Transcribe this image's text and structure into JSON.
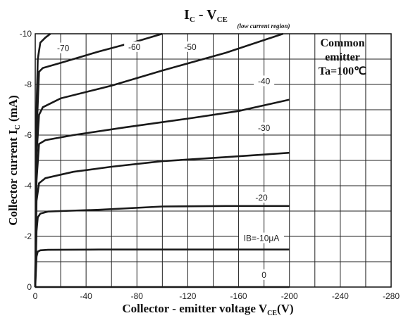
{
  "chart_data": {
    "type": "line",
    "title": {
      "main": "I",
      "main_sub": "C",
      "sep": " - V",
      "sep_sub": "CE",
      "note": "(low current region)"
    },
    "xlabel": {
      "main": "Collector - emitter voltage V",
      "sub": "CE",
      "unit": "(V)"
    },
    "ylabel": {
      "main": "Collector current  I",
      "sub": "C",
      "unit": " (mA)"
    },
    "xlim": [
      0,
      -280
    ],
    "ylim": [
      0,
      -10
    ],
    "grid": true,
    "x_ticks": [
      "0",
      "-40",
      "-80",
      "-120",
      "-160",
      "-200",
      "-240",
      "-280"
    ],
    "x_tick_values": [
      0,
      -40,
      -80,
      -120,
      -160,
      -200,
      -240,
      -280
    ],
    "y_ticks": [
      "0",
      "-2",
      "-4",
      "-6",
      "-8",
      "-10"
    ],
    "y_tick_values": [
      0,
      -2,
      -4,
      -6,
      -8,
      -10
    ],
    "note_lines": [
      "Common",
      "emitter",
      "Ta=100℃"
    ],
    "series": [
      {
        "name": "0",
        "label": "0",
        "points": [
          [
            0,
            0
          ],
          [
            -200,
            0
          ]
        ]
      },
      {
        "name": "IB=-10μA",
        "label": "IB=-10μA",
        "points": [
          [
            0,
            0
          ],
          [
            -1,
            -1.2
          ],
          [
            -2,
            -1.4
          ],
          [
            -4,
            -1.45
          ],
          [
            -10,
            -1.47
          ],
          [
            -50,
            -1.48
          ],
          [
            -100,
            -1.48
          ],
          [
            -200,
            -1.48
          ]
        ]
      },
      {
        "name": "-20",
        "label": "-20",
        "points": [
          [
            0,
            0
          ],
          [
            -1,
            -2.2
          ],
          [
            -2,
            -2.75
          ],
          [
            -4,
            -2.9
          ],
          [
            -10,
            -2.98
          ],
          [
            -20,
            -3.0
          ],
          [
            -50,
            -3.05
          ],
          [
            -100,
            -3.18
          ],
          [
            -150,
            -3.2
          ],
          [
            -200,
            -3.2
          ]
        ]
      },
      {
        "name": "-30",
        "label": "-30",
        "points": [
          [
            0,
            0
          ],
          [
            -1,
            -3.4
          ],
          [
            -3,
            -4.1
          ],
          [
            -8,
            -4.3
          ],
          [
            -30,
            -4.55
          ],
          [
            -60,
            -4.75
          ],
          [
            -100,
            -4.97
          ],
          [
            -150,
            -5.13
          ],
          [
            -200,
            -5.3
          ]
        ]
      },
      {
        "name": "-40",
        "label": "-40",
        "points": [
          [
            0,
            0
          ],
          [
            -1,
            -4.2
          ],
          [
            -3,
            -5.65
          ],
          [
            -8,
            -5.8
          ],
          [
            -30,
            -6.0
          ],
          [
            -70,
            -6.3
          ],
          [
            -120,
            -6.65
          ],
          [
            -160,
            -6.95
          ],
          [
            -200,
            -7.4
          ]
        ]
      },
      {
        "name": "-50",
        "label": "-50",
        "points": [
          [
            0,
            0
          ],
          [
            -1,
            -5.2
          ],
          [
            -3,
            -6.8
          ],
          [
            -6,
            -7.1
          ],
          [
            -20,
            -7.45
          ],
          [
            -60,
            -7.95
          ],
          [
            -100,
            -8.55
          ],
          [
            -150,
            -9.25
          ],
          [
            -195,
            -10
          ]
        ]
      },
      {
        "name": "-60",
        "label": "-60",
        "points": [
          [
            0,
            0
          ],
          [
            -1,
            -6.0
          ],
          [
            -3,
            -8.5
          ],
          [
            -6,
            -8.65
          ],
          [
            -20,
            -8.85
          ],
          [
            -50,
            -9.3
          ],
          [
            -80,
            -9.7
          ],
          [
            -100,
            -10
          ]
        ]
      },
      {
        "name": "-70",
        "label": "-70",
        "points": [
          [
            0,
            0
          ],
          [
            -1,
            -7.0
          ],
          [
            -2,
            -9.0
          ],
          [
            -4,
            -9.65
          ],
          [
            -8,
            -9.85
          ],
          [
            -12,
            -10
          ]
        ]
      }
    ],
    "curve_labels": [
      {
        "text": "-70",
        "x": -22,
        "y": -9.4
      },
      {
        "text": "-60",
        "x": -78,
        "y": -9.45
      },
      {
        "text": "-50",
        "x": -122,
        "y": -9.45
      },
      {
        "text": "-40",
        "x": -180,
        "y": -8.1
      },
      {
        "text": "-30",
        "x": -180,
        "y": -6.25
      },
      {
        "text": "-20",
        "x": -178,
        "y": -3.5
      },
      {
        "text": "IB=-10μA",
        "x": -178,
        "y": -1.9
      },
      {
        "text": "0",
        "x": -180,
        "y": -0.45
      }
    ]
  }
}
